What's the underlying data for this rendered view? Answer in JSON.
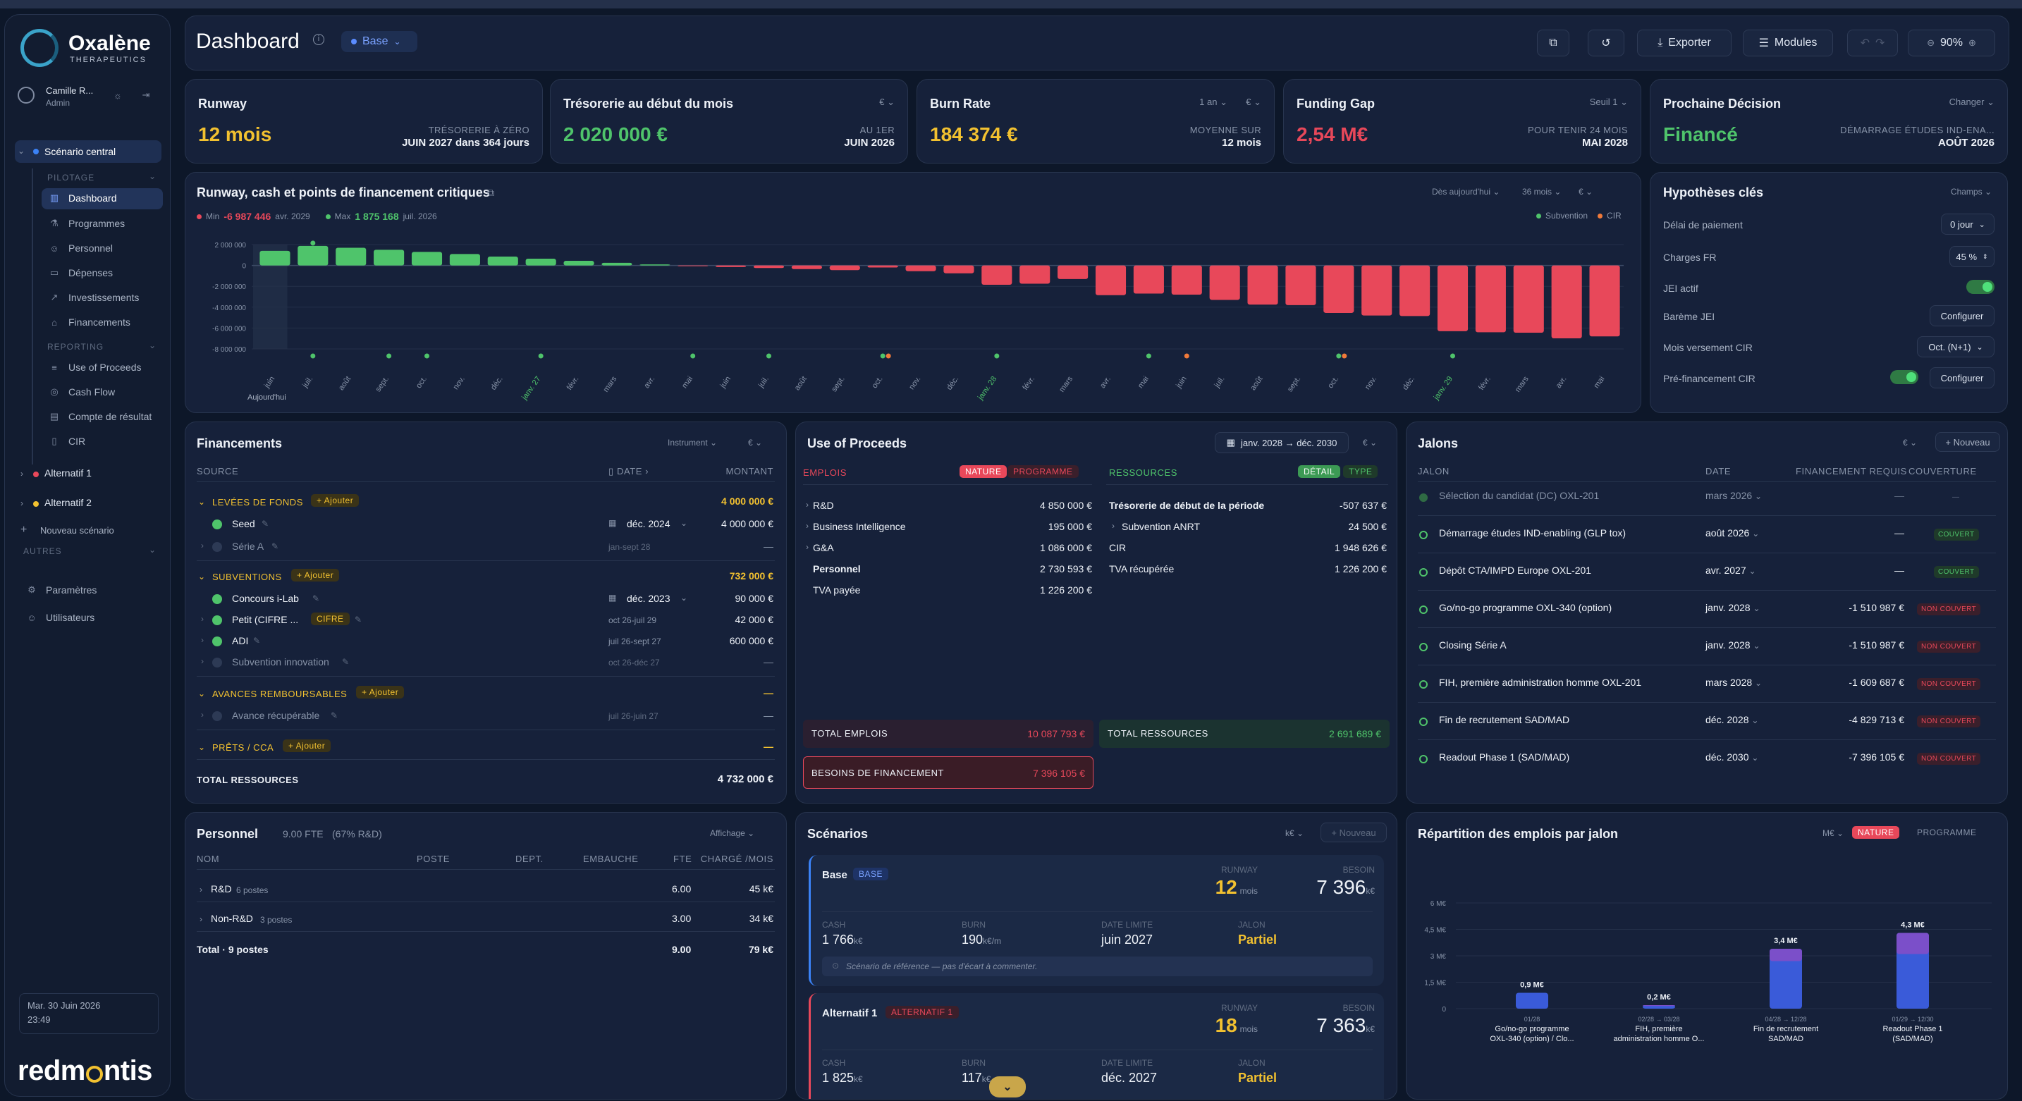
{
  "app": {
    "brand": "Oxalène",
    "brand_sub": "THERAPEUTICS",
    "user_name": "Camille R...",
    "user_role": "Admin",
    "footer_brand_a": "redm",
    "footer_brand_b": "ntis",
    "datetime_line1": "Mar. 30 Juin 2026",
    "datetime_line2": "23:49"
  },
  "sidebar": {
    "scenario_central": "Scénario central",
    "group_pilotage": "PILOTAGE",
    "pilotage": [
      "Dashboard",
      "Programmes",
      "Personnel",
      "Dépenses",
      "Investissements",
      "Financements"
    ],
    "group_reporting": "REPORTING",
    "reporting": [
      "Use of Proceeds",
      "Cash Flow",
      "Compte de résultat",
      "CIR"
    ],
    "alt1": "Alternatif 1",
    "alt2": "Alternatif 2",
    "new_scenario": "Nouveau scénario",
    "group_autres": "AUTRES",
    "autres": [
      "Paramètres",
      "Utilisateurs"
    ]
  },
  "header": {
    "title": "Dashboard",
    "scenario_badge": "Base",
    "export": "Exporter",
    "modules": "Modules",
    "zoom": "90%"
  },
  "kpis": {
    "runway": {
      "title": "Runway",
      "value": "12 mois",
      "sub1": "TRÉSORERIE À ZÉRO",
      "sub2": "JUIN 2027 dans 364 jours"
    },
    "treso": {
      "title": "Trésorerie au début du mois",
      "value": "2 020 000 €",
      "sel": "€",
      "sub1": "AU 1ER",
      "sub2": "JUIN 2026"
    },
    "burn": {
      "title": "Burn Rate",
      "value": "184 374 €",
      "sel1": "1 an",
      "sel2": "€",
      "sub1": "MOYENNE SUR",
      "sub2": "12 mois"
    },
    "gap": {
      "title": "Funding Gap",
      "value": "2,54 M€",
      "sel": "Seuil 1",
      "sub1": "POUR TENIR 24 MOIS",
      "sub2": "MAI 2028"
    },
    "decision": {
      "title": "Prochaine Décision",
      "value": "Financé",
      "sel": "Changer",
      "sub1": "DÉMARRAGE ÉTUDES IND-ENA...",
      "sub2": "AOÛT 2026"
    }
  },
  "runway_chart": {
    "title": "Runway, cash et points de financement critiques",
    "min_label": "Min",
    "min_value": "-6 987 446",
    "min_date": "avr. 2029",
    "max_label": "Max",
    "max_value": "1 875 168",
    "max_date": "juil. 2026",
    "sel_from": "Dès aujourd'hui",
    "sel_months": "36 mois",
    "sel_unit": "€",
    "legend_subvention": "Subvention",
    "legend_cir": "CIR",
    "today_label": "Aujourd'hui",
    "colors": {
      "positive": "#4fc46b",
      "negative": "#e8485a",
      "subvention": "#4fc46b",
      "cir": "#f07a3a"
    }
  },
  "chart_data": {
    "type": "bar",
    "title": "Runway, cash et points de financement critiques",
    "ylim": [
      -8000000,
      2000000
    ],
    "yticks": [
      "2 000 000",
      "0",
      "-2 000 000",
      "-4 000 000",
      "-6 000 000",
      "-8 000 000"
    ],
    "categories": [
      "juin",
      "juil.",
      "août",
      "sept.",
      "oct.",
      "nov.",
      "déc.",
      "janv. 27",
      "févr.",
      "mars",
      "avr.",
      "mai",
      "juin",
      "juil.",
      "août",
      "sept.",
      "oct.",
      "nov.",
      "déc.",
      "janv. 28",
      "févr.",
      "mars",
      "avr.",
      "mai",
      "juin",
      "juil.",
      "août",
      "sept.",
      "oct.",
      "nov.",
      "déc.",
      "janv. 29",
      "févr.",
      "mars",
      "avr.",
      "mai"
    ],
    "values": [
      1400000,
      1875168,
      1700000,
      1500000,
      1300000,
      1100000,
      850000,
      650000,
      450000,
      250000,
      100000,
      -50000,
      -150000,
      -250000,
      -350000,
      -450000,
      -200000,
      -550000,
      -750000,
      -1850000,
      -1750000,
      -1300000,
      -2850000,
      -2700000,
      -2800000,
      -3300000,
      -3750000,
      -3800000,
      -4550000,
      -4800000,
      -4850000,
      -6300000,
      -6400000,
      -6450000,
      -6987446,
      -6800000
    ],
    "markers_subvention": [
      "juil.",
      "sept.",
      "oct.",
      "janv. 27",
      "mai",
      "juil.",
      "oct.",
      "janv. 28",
      "mai",
      "oct.",
      "janv. 29"
    ],
    "markers_cir": [
      "oct.",
      "juin",
      "oct."
    ],
    "legend": [
      "Subvention",
      "CIR"
    ]
  },
  "hypotheses": {
    "title": "Hypothèses clés",
    "sel": "Champs",
    "rows": [
      {
        "label": "Délai de paiement",
        "value": "0 jour"
      },
      {
        "label": "Charges FR",
        "value": "45 %"
      },
      {
        "label": "JEI actif",
        "value": ""
      },
      {
        "label": "Barème JEI",
        "value": "Configurer"
      },
      {
        "label": "Mois versement CIR",
        "value": "Oct. (N+1)"
      },
      {
        "label": "Pré-financement CIR",
        "value": "Configurer"
      }
    ]
  },
  "financements": {
    "title": "Financements",
    "sel1": "Instrument",
    "sel2": "€",
    "col_source": "SOURCE",
    "col_date": "DATE",
    "col_montant": "MONTANT",
    "add": "+ Ajouter",
    "groups": [
      {
        "name": "LEVÉES DE FONDS",
        "total": "4 000 000 €",
        "items": [
          {
            "name": "Seed",
            "date": "déc. 2024",
            "amount": "4 000 000 €"
          },
          {
            "name": "Série A",
            "date": "jan-sept 28",
            "amount": "—"
          }
        ]
      },
      {
        "name": "SUBVENTIONS",
        "total": "732 000 €",
        "items": [
          {
            "name": "Concours i-Lab",
            "date": "déc. 2023",
            "amount": "90 000 €"
          },
          {
            "name": "Petit (CIFRE ...",
            "tag": "CIFRE",
            "date": "oct 26-juil 29",
            "amount": "42 000 €"
          },
          {
            "name": "ADI",
            "date": "juil 26-sept 27",
            "amount": "600 000 €"
          },
          {
            "name": "Subvention innovation",
            "date": "oct 26-déc 27",
            "amount": "—"
          }
        ]
      },
      {
        "name": "AVANCES REMBOURSABLES",
        "total": "—",
        "items": [
          {
            "name": "Avance récupérable",
            "date": "juil 26-juin 27",
            "amount": "—"
          }
        ]
      },
      {
        "name": "PRÊTS / CCA",
        "total": "—",
        "items": []
      }
    ],
    "total_label": "TOTAL RESSOURCES",
    "total_value": "4 732 000 €"
  },
  "uop": {
    "title": "Use of Proceeds",
    "range": "janv. 2028 → déc. 2030",
    "unit": "€",
    "emplois": "EMPLOIS",
    "nature": "NATURE",
    "programme": "PROGRAMME",
    "ressources": "RESSOURCES",
    "detail": "DÉTAIL",
    "type": "TYPE",
    "emplois_rows": [
      {
        "label": "R&D",
        "value": "4 850 000 €"
      },
      {
        "label": "Business Intelligence",
        "value": "195 000 €"
      },
      {
        "label": "G&A",
        "value": "1 086 000 €"
      },
      {
        "label": "Personnel",
        "value": "2 730 593 €"
      },
      {
        "label": "TVA payée",
        "value": "1 226 200 €"
      }
    ],
    "ressources_rows": [
      {
        "label": "Trésorerie de début de la période",
        "value": "-507 637 €"
      },
      {
        "label": "Subvention ANRT",
        "value": "24 500 €"
      },
      {
        "label": "CIR",
        "value": "1 948 626 €"
      },
      {
        "label": "TVA récupérée",
        "value": "1 226 200 €"
      }
    ],
    "total_emplois_label": "TOTAL EMPLOIS",
    "total_emplois": "10 087 793 €",
    "total_res_label": "TOTAL RESSOURCES",
    "total_res": "2 691 689 €",
    "besoins_label": "BESOINS DE FINANCEMENT",
    "besoins": "7 396 105 €"
  },
  "jalons": {
    "title": "Jalons",
    "unit": "€",
    "new": "+ Nouveau",
    "col_jalon": "JALON",
    "col_date": "DATE",
    "col_fin": "FINANCEMENT REQUIS",
    "col_cov": "COUVERTURE",
    "rows": [
      {
        "name": "Sélection du candidat (DC) OXL-201",
        "date": "mars 2026",
        "fin": "—",
        "cov": "—"
      },
      {
        "name": "Démarrage études IND-enabling (GLP tox)",
        "date": "août 2026",
        "fin": "—",
        "cov": "COUVERT"
      },
      {
        "name": "Dépôt CTA/IMPD Europe OXL-201",
        "date": "avr. 2027",
        "fin": "—",
        "cov": "COUVERT"
      },
      {
        "name": "Go/no-go programme OXL-340 (option)",
        "date": "janv. 2028",
        "fin": "-1 510 987 €",
        "cov": "NON COUVERT"
      },
      {
        "name": "Closing Série A",
        "date": "janv. 2028",
        "fin": "-1 510 987 €",
        "cov": "NON COUVERT"
      },
      {
        "name": "FIH, première administration homme OXL-201",
        "date": "mars 2028",
        "fin": "-1 609 687 €",
        "cov": "NON COUVERT"
      },
      {
        "name": "Fin de recrutement SAD/MAD",
        "date": "déc. 2028",
        "fin": "-4 829 713 €",
        "cov": "NON COUVERT"
      },
      {
        "name": "Readout Phase 1 (SAD/MAD)",
        "date": "déc. 2030",
        "fin": "-7 396 105 €",
        "cov": "NON COUVERT"
      }
    ]
  },
  "personnel": {
    "title": "Personnel",
    "fte": "9.00 FTE",
    "fte_rd": "(67% R&D)",
    "sel": "Affichage",
    "cols": [
      "NOM",
      "POSTE",
      "DEPT.",
      "EMBAUCHE",
      "FTE",
      "CHARGÉ /MOIS"
    ],
    "rows": [
      {
        "name": "R&D",
        "count": "6 postes",
        "fte": "6.00",
        "charge": "45 k€"
      },
      {
        "name": "Non-R&D",
        "count": "3 postes",
        "fte": "3.00",
        "charge": "34 k€"
      }
    ],
    "total_label": "Total · 9 postes",
    "total_fte": "9.00",
    "total_charge": "79 k€"
  },
  "scenarios": {
    "title": "Scénarios",
    "unit": "k€",
    "new": "+ Nouveau",
    "cards": [
      {
        "name": "Base",
        "tag": "BASE",
        "runway_label": "RUNWAY",
        "runway": "12",
        "runway_unit": "mois",
        "besoin_label": "BESOIN",
        "besoin": "7 396",
        "besoin_unit": "k€",
        "cash_label": "CASH",
        "cash": "1 766",
        "cash_unit": "k€",
        "burn_label": "BURN",
        "burn": "190",
        "burn_unit": "k€/m",
        "date_label": "DATE LIMITE",
        "date": "juin 2027",
        "jalon_label": "JALON",
        "jalon": "Partiel",
        "note": "Scénario de référence — pas d'écart à commenter."
      },
      {
        "name": "Alternatif 1",
        "tag": "ALTERNATIF 1",
        "runway_label": "RUNWAY",
        "runway": "18",
        "runway_unit": "mois",
        "besoin_label": "BESOIN",
        "besoin": "7 363",
        "besoin_unit": "k€",
        "cash_label": "CASH",
        "cash": "1 825",
        "cash_unit": "k€",
        "burn_label": "BURN",
        "burn": "117",
        "burn_unit": "k€",
        "date_label": "DATE LIMITE",
        "date": "déc. 2027",
        "jalon_label": "JALON",
        "jalon": "Partiel"
      }
    ]
  },
  "repartition": {
    "title": "Répartition des emplois par jalon",
    "unit": "M€",
    "nature": "NATURE",
    "programme": "PROGRAMME",
    "yticks": [
      "6 M€",
      "4,5 M€",
      "3 M€",
      "1,5 M€",
      "0"
    ],
    "bars": [
      {
        "value": "0,9 M€",
        "date": "01/28",
        "label1": "Go/no-go programme",
        "label2": "OXL-340 (option) / Clo...",
        "total": 0.9,
        "seg_top": 0.0
      },
      {
        "value": "0,2 M€",
        "date": "02/28 → 03/28",
        "label1": "FIH, première",
        "label2": "administration homme O...",
        "total": 0.2,
        "seg_top": 0.05
      },
      {
        "value": "3,4 M€",
        "date": "04/28 → 12/28",
        "label1": "Fin de recrutement",
        "label2": "SAD/MAD",
        "total": 3.4,
        "seg_top": 0.7
      },
      {
        "value": "4,3 M€",
        "date": "01/29 → 12/30",
        "label1": "Readout Phase 1",
        "label2": "(SAD/MAD)",
        "total": 4.3,
        "seg_top": 1.2
      }
    ],
    "colors": {
      "base": "#3a5bd9",
      "top": "#7b4fc9"
    }
  }
}
